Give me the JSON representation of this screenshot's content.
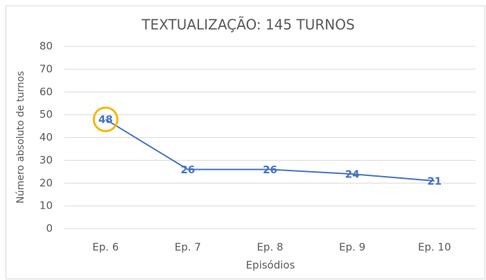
{
  "chart_data": {
    "type": "line",
    "title": "TEXTUALIZAÇÃO: 145 TURNOS",
    "x_label": "Episódios",
    "y_label": "Número absoluto de turnos",
    "categories": [
      "Ep. 6",
      "Ep. 7",
      "Ep. 8",
      "Ep. 9",
      "Ep. 10"
    ],
    "series": [
      {
        "name": "Turnos",
        "color": "#4472c4",
        "values": [
          48,
          26,
          26,
          24,
          21
        ]
      }
    ],
    "ylim": [
      0,
      80
    ],
    "yticks": [
      0,
      10,
      20,
      30,
      40,
      50,
      60,
      70,
      80
    ],
    "grid": true,
    "highlight_color": "#f5b800"
  }
}
